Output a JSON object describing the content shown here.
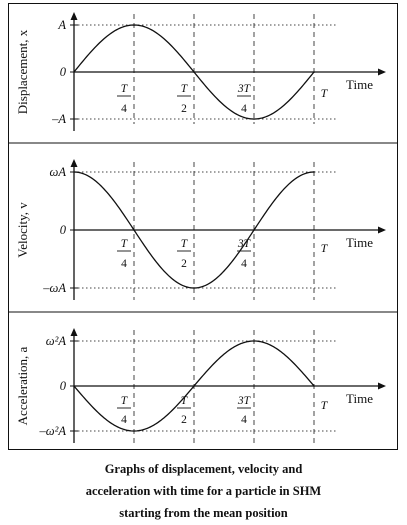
{
  "chart_data": [
    {
      "type": "line",
      "ylabel": "Displacement, x",
      "xlabel": "Time",
      "y_ticks": [
        "A",
        "0",
        "–A"
      ],
      "x_ticks": [
        "T/4",
        "T/2",
        "3T/4",
        "T"
      ],
      "xlim": [
        0,
        1
      ],
      "ylim": [
        -1,
        1
      ],
      "x": [
        0,
        0.25,
        0.5,
        0.75,
        1
      ],
      "y": [
        0,
        1,
        0,
        -1,
        0
      ]
    },
    {
      "type": "line",
      "ylabel": "Velocity, v",
      "xlabel": "Time",
      "y_ticks": [
        "ωA",
        "0",
        "–ωA"
      ],
      "x_ticks": [
        "T/4",
        "T/2",
        "3T/4",
        "T"
      ],
      "xlim": [
        0,
        1
      ],
      "ylim": [
        -1,
        1
      ],
      "x": [
        0,
        0.25,
        0.5,
        0.75,
        1
      ],
      "y": [
        1,
        0,
        -1,
        0,
        1
      ]
    },
    {
      "type": "line",
      "ylabel": "Acceleration, a",
      "xlabel": "Time",
      "y_ticks": [
        "ω²A",
        "0",
        "–ω²A"
      ],
      "x_ticks": [
        "T/4",
        "T/2",
        "3T/4",
        "T"
      ],
      "xlim": [
        0,
        1
      ],
      "ylim": [
        -1,
        1
      ],
      "x": [
        0,
        0.25,
        0.5,
        0.75,
        1
      ],
      "y": [
        0,
        -1,
        0,
        1,
        0
      ]
    }
  ],
  "caption": {
    "line1": "Graphs of displacement, velocity and",
    "line2": "acceleration with time for a particle in SHM",
    "line3": "starting from the mean position"
  },
  "colors": {
    "ink": "#111111",
    "guide": "#444444"
  }
}
